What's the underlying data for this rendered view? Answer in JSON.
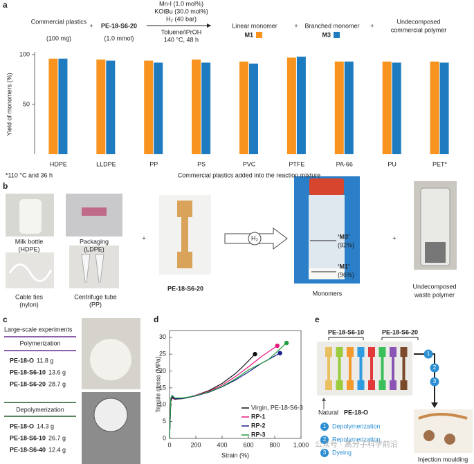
{
  "panel_labels": [
    "a",
    "b",
    "c",
    "d",
    "e"
  ],
  "scheme": {
    "reactant1": "Commercial plastics",
    "reactant1_amount": "(100 mg)",
    "plus": "+",
    "reactant2": "PE-18-S6-20",
    "reactant2_amount": "(1.0 mmol)",
    "conditions": [
      "Mn-I (1.0 mol%)",
      "KOtBu (30.0 mol%)",
      "H₂ (40 bar)",
      "Toluene/iPrOH",
      "140 °C, 48 h"
    ],
    "product1": "Linear monomer",
    "product2": "Branched monomer",
    "product3": [
      "Undecomposed",
      "commercial polymer"
    ]
  },
  "footnote": "*110 °C and 36 h",
  "chart_data": [
    {
      "type": "bar",
      "ylabel": "Yield of monomers (%)",
      "xlabel": "Commercial plastics added into the reaction mixture",
      "categories": [
        "HDPE",
        "LLDPE",
        "PP",
        "PS",
        "PVC",
        "PTFE",
        "PA-66",
        "PU",
        "PET*"
      ],
      "series": [
        {
          "name": "M1",
          "color": "#f7931e",
          "values": [
            96,
            95,
            94,
            95,
            93,
            97,
            93,
            93,
            93
          ]
        },
        {
          "name": "M3",
          "color": "#1f7bbf",
          "values": [
            96,
            94,
            92,
            92,
            91,
            98,
            93,
            92,
            92
          ]
        }
      ],
      "ylim": [
        0,
        100
      ],
      "yticks": [
        50,
        100
      ]
    },
    {
      "type": "line",
      "xlabel": "Strain (%)",
      "ylabel": "Tensile stress (MPa)",
      "series": [
        {
          "name": "Virgin, PE-18-S6-3",
          "color": "#111111",
          "x": [
            0,
            10,
            20,
            40,
            60,
            100,
            150,
            200,
            300,
            400,
            500,
            550,
            600,
            650
          ],
          "values": [
            0,
            11,
            12,
            11.6,
            11.7,
            11.8,
            12.2,
            12.8,
            14.2,
            16.3,
            19.2,
            21,
            23,
            25
          ]
        },
        {
          "name": "RP-1",
          "color": "#e6197d",
          "x": [
            0,
            10,
            20,
            40,
            60,
            100,
            150,
            200,
            300,
            400,
            500,
            600,
            700,
            820
          ],
          "values": [
            0,
            11.5,
            12.3,
            11.7,
            11.8,
            11.9,
            12.3,
            12.8,
            14,
            15.8,
            18.3,
            21.2,
            24.3,
            27.5
          ]
        },
        {
          "name": "RP-2",
          "color": "#1c1c8c",
          "x": [
            0,
            10,
            20,
            40,
            60,
            100,
            150,
            200,
            300,
            400,
            500,
            600,
            700,
            840
          ],
          "values": [
            0,
            11.8,
            12.5,
            11.8,
            11.8,
            11.9,
            12.2,
            12.6,
            13.7,
            15.3,
            17.3,
            19.7,
            22.3,
            25.3
          ]
        },
        {
          "name": "RP-3",
          "color": "#1e9b3c",
          "x": [
            0,
            10,
            20,
            40,
            60,
            100,
            150,
            200,
            300,
            400,
            500,
            600,
            750,
            890
          ],
          "values": [
            0,
            12,
            12.8,
            12,
            12,
            12,
            12.3,
            12.7,
            13.8,
            15.4,
            17.6,
            20.3,
            23.3,
            28.3
          ]
        }
      ],
      "xlim": [
        0,
        1000
      ],
      "xticks": [
        0,
        200,
        400,
        600,
        800,
        {
          "value": 1000,
          "label": "1,000"
        }
      ],
      "ylim": [
        0,
        32
      ],
      "yticks": [
        0,
        5,
        10,
        15,
        20,
        25,
        30
      ]
    }
  ],
  "panel_b": {
    "items": [
      {
        "label": "Milk bottle",
        "sub": "(HDPE)"
      },
      {
        "label": "Packaging",
        "sub": "(LDPE)"
      },
      {
        "label": "Cable ties",
        "sub": "(nylon)"
      },
      {
        "label": "Centrifuge tube",
        "sub": "(PP)"
      }
    ],
    "product": "PE-18-S6-20",
    "h2": "H₂",
    "m3_label": "‘M3’",
    "m3_yield": "(92%)",
    "m1_label": "‘M1’",
    "m1_yield": "(96%)",
    "monomers": "Monomers",
    "waste": [
      "Undecomposed",
      "waste polymer"
    ]
  },
  "panel_c": {
    "title": "Large-scale experiments",
    "sections": [
      {
        "heading": "Polymerization",
        "rows": [
          {
            "name": "PE-18-O",
            "amount": "11.8 g"
          },
          {
            "name": "PE-18-S6-10",
            "amount": "13.6 g"
          },
          {
            "name": "PE-18-S6-20",
            "amount": "28.7 g"
          }
        ]
      },
      {
        "heading": "Depolymerization",
        "rows": [
          {
            "name": "PE-18-O",
            "amount": "14.3 g"
          },
          {
            "name": "PE-18-S6-10",
            "amount": "26.7 g"
          },
          {
            "name": "PE-18-S6-40",
            "amount": "12.4 g"
          }
        ]
      }
    ]
  },
  "panel_e": {
    "group1": "PE-18-S6-10",
    "group2": "PE-18-S6-20",
    "natural": "Natural",
    "natural_name": "PE-18-O",
    "steps": [
      {
        "n": "1",
        "label": "Depolymerization"
      },
      {
        "n": "2",
        "label": "Repolymerization"
      },
      {
        "n": "3",
        "label": "Dyeing"
      }
    ],
    "result": "Injection moulding"
  },
  "watermark": "公众号 · 高分子科学前沿"
}
